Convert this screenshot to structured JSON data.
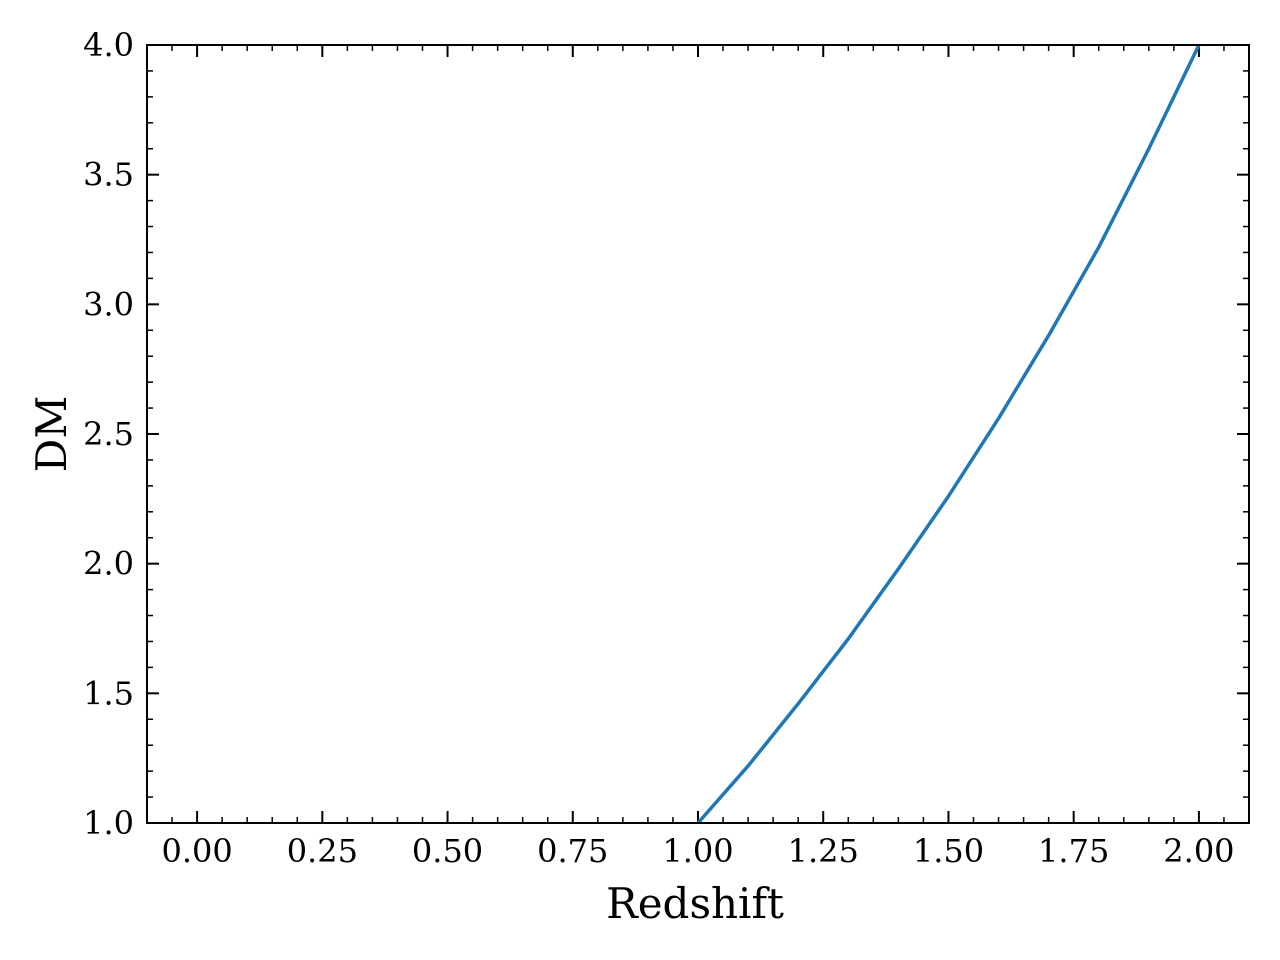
{
  "chart_data": {
    "type": "line",
    "title": "",
    "xlabel": "Redshift",
    "ylabel": "DM",
    "xlim": [
      -0.1,
      2.1
    ],
    "ylim": [
      1.0,
      4.0
    ],
    "grid": false,
    "xticks": [
      0.0,
      0.25,
      0.5,
      0.75,
      1.0,
      1.25,
      1.5,
      1.75,
      2.0
    ],
    "xtick_labels": [
      "0.00",
      "0.25",
      "0.50",
      "0.75",
      "1.00",
      "1.25",
      "1.50",
      "1.75",
      "2.00"
    ],
    "yticks": [
      1.0,
      1.5,
      2.0,
      2.5,
      3.0,
      3.5,
      4.0
    ],
    "ytick_labels": [
      "1.0",
      "1.5",
      "2.0",
      "2.5",
      "3.0",
      "3.5",
      "4.0"
    ],
    "series": [
      {
        "color": "#1f77b4",
        "x": [
          1.0,
          1.1,
          1.2,
          1.3,
          1.4,
          1.5,
          1.6,
          1.7,
          1.8,
          1.9,
          2.0
        ],
        "y": [
          1.0,
          1.22,
          1.46,
          1.71,
          1.98,
          2.26,
          2.56,
          2.88,
          3.22,
          3.6,
          4.0
        ]
      }
    ]
  }
}
